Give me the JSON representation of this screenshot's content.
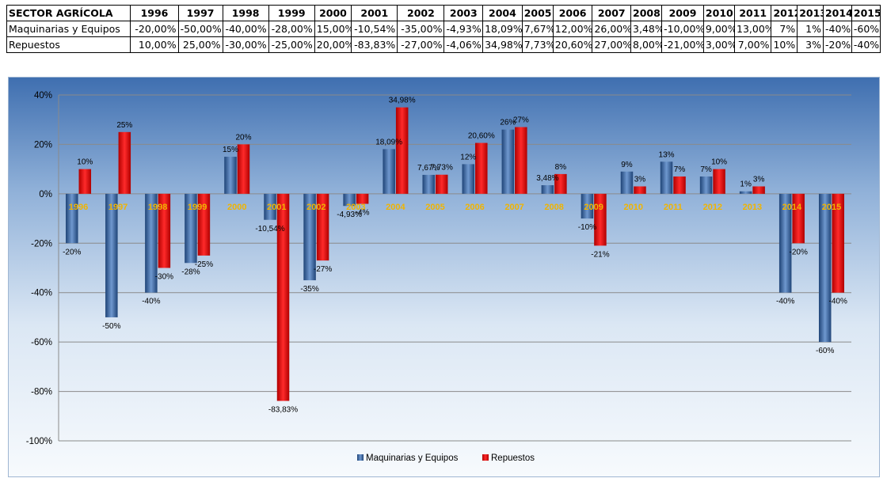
{
  "table": {
    "header_label": "SECTOR AGRÍCOLA",
    "years": [
      "1996",
      "1997",
      "1998",
      "1999",
      "2000",
      "2001",
      "2002",
      "2003",
      "2004",
      "2005",
      "2006",
      "2007",
      "2008",
      "2009",
      "2010",
      "2011",
      "2012",
      "2013",
      "2014",
      "2015"
    ],
    "rows": [
      {
        "label": "Maquinarias y Equipos",
        "cells": [
          "-20,00%",
          "-50,00%",
          "-40,00%",
          "-28,00%",
          "15,00%",
          "-10,54%",
          "-35,00%",
          "-4,93%",
          "18,09%",
          "7,67%",
          "12,00%",
          "26,00%",
          "3,48%",
          "-10,00%",
          "9,00%",
          "13,00%",
          "7%",
          "1%",
          "-40%",
          "-60%"
        ]
      },
      {
        "label": "Repuestos",
        "cells": [
          "10,00%",
          "25,00%",
          "-30,00%",
          "-25,00%",
          "20,00%",
          "-83,83%",
          "-27,00%",
          "-4,06%",
          "34,98%",
          "7,73%",
          "20,60%",
          "27,00%",
          "8,00%",
          "-21,00%",
          "3,00%",
          "7,00%",
          "10%",
          "3%",
          "-20%",
          "-40%"
        ]
      }
    ]
  },
  "chart_data": {
    "type": "bar",
    "categories": [
      "1996",
      "1997",
      "1998",
      "1999",
      "2000",
      "2001",
      "2002",
      "2003",
      "2004",
      "2005",
      "2006",
      "2007",
      "2008",
      "2009",
      "2010",
      "2011",
      "2012",
      "2013",
      "2014",
      "2015"
    ],
    "series": [
      {
        "name": "Maquinarias y Equipos",
        "color": "#2f5d9a",
        "values": [
          -20,
          -50,
          -40,
          -28,
          15,
          -10.54,
          -35,
          -4.93,
          18.09,
          7.67,
          12,
          26,
          3.48,
          -10,
          9,
          13,
          7,
          1,
          -40,
          -60
        ],
        "labels": [
          "-20%",
          "-50%",
          "-40%",
          "-28%",
          "15%",
          "-10,54%",
          "-35%",
          "-4,93%",
          "18,09%",
          "7,67%",
          "12%",
          "26%",
          "3,48%",
          "-10%",
          "9%",
          "13%",
          "7%",
          "1%",
          "-40%",
          "-60%"
        ]
      },
      {
        "name": "Repuestos",
        "color": "#ee0000",
        "values": [
          10,
          25,
          -30,
          -25,
          20,
          -83.83,
          -27,
          -4.06,
          34.98,
          7.73,
          20.6,
          27,
          8,
          -21,
          3,
          7,
          10,
          3,
          -20,
          -40
        ],
        "labels": [
          "10%",
          "25%",
          "-30%",
          "-25%",
          "20%",
          "-83,83%",
          "-27%",
          "-4%",
          "34,98%",
          "7,73%",
          "20,60%",
          "27%",
          "8%",
          "-21%",
          "3%",
          "7%",
          "10%",
          "3%",
          "-20%",
          "-40%"
        ]
      }
    ],
    "y_ticks": [
      "40%",
      "20%",
      "0%",
      "-20%",
      "-40%",
      "-60%",
      "-80%",
      "-100%"
    ],
    "ylim": [
      -100,
      40
    ],
    "grid": true,
    "legend_position": "bottom",
    "category_label_color": "#f0b400"
  }
}
